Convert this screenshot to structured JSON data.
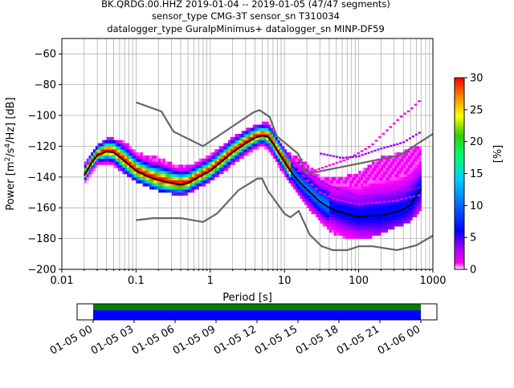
{
  "chart_data": {
    "type": "heatmap",
    "title_lines": [
      "BK.QRDG.00.HHZ   2019-01-04 -- 2019-01-05  (47/47 segments)",
      "sensor_type CMG-3T sensor_sn T310034",
      "datalogger_type GuralpMinimus+ datalogger_sn MINP-DF59"
    ],
    "xlabel": "Period [s]",
    "ylabel": "Power [m^2/s^4/Hz] [dB]",
    "xscale": "log",
    "xlim": [
      0.01,
      1000
    ],
    "ylim": [
      -200,
      -50
    ],
    "xticks": [
      {
        "v": 0.01,
        "label": "0.01"
      },
      {
        "v": 0.1,
        "label": "0.1"
      },
      {
        "v": 1,
        "label": "1"
      },
      {
        "v": 10,
        "label": "10"
      },
      {
        "v": 100,
        "label": "100"
      },
      {
        "v": 1000,
        "label": "1000"
      }
    ],
    "yticks": [
      -60,
      -80,
      -100,
      -120,
      -140,
      -160,
      -180,
      -200
    ],
    "grid": true,
    "colorbar": {
      "label": "[%]",
      "range": [
        0,
        30
      ],
      "ticks": [
        0,
        5,
        10,
        15,
        20,
        25,
        30
      ],
      "colormap_stops": [
        {
          "v": 0,
          "c": "#ffffff"
        },
        {
          "v": 1,
          "c": "#ff00ff"
        },
        {
          "v": 3.5,
          "c": "#9900ff"
        },
        {
          "v": 6,
          "c": "#0000ff"
        },
        {
          "v": 10,
          "c": "#0066ff"
        },
        {
          "v": 14,
          "c": "#00ccff"
        },
        {
          "v": 18,
          "c": "#00ff66"
        },
        {
          "v": 21,
          "c": "#33cc00"
        },
        {
          "v": 24,
          "c": "#ffff00"
        },
        {
          "v": 27,
          "c": "#ff8800"
        },
        {
          "v": 30,
          "c": "#ff0000"
        }
      ]
    },
    "noise_models": [
      {
        "name": "NHNM",
        "points": [
          [
            0.1,
            -91.5
          ],
          [
            0.22,
            -97.4
          ],
          [
            0.32,
            -110.5
          ],
          [
            0.8,
            -120
          ],
          [
            3.8,
            -98
          ],
          [
            4.6,
            -96.5
          ],
          [
            6.3,
            -101
          ],
          [
            7.9,
            -113.5
          ],
          [
            15.4,
            -125
          ],
          [
            20,
            -138
          ],
          [
            354.8,
            -126
          ],
          [
            1000,
            -112
          ]
        ]
      },
      {
        "name": "NLNM",
        "points": [
          [
            0.1,
            -168
          ],
          [
            0.17,
            -166.7
          ],
          [
            0.4,
            -166.7
          ],
          [
            0.8,
            -169.2
          ],
          [
            1.24,
            -163.7
          ],
          [
            2.4,
            -148.6
          ],
          [
            4.3,
            -141.1
          ],
          [
            5,
            -141.1
          ],
          [
            6,
            -149
          ],
          [
            10,
            -163.8
          ],
          [
            12,
            -166.2
          ],
          [
            15.6,
            -162.1
          ],
          [
            21.9,
            -177.5
          ],
          [
            31.6,
            -185
          ],
          [
            45,
            -187.5
          ],
          [
            70,
            -187.5
          ],
          [
            101,
            -185
          ],
          [
            154,
            -185
          ],
          [
            328,
            -187.5
          ],
          [
            600,
            -184.4
          ],
          [
            1000,
            -178
          ]
        ]
      }
    ],
    "mean_curve": [
      [
        0.02,
        -139
      ],
      [
        0.025,
        -131
      ],
      [
        0.03,
        -126
      ],
      [
        0.04,
        -123.5
      ],
      [
        0.05,
        -124
      ],
      [
        0.06,
        -127
      ],
      [
        0.08,
        -132
      ],
      [
        0.1,
        -136
      ],
      [
        0.15,
        -140
      ],
      [
        0.2,
        -142
      ],
      [
        0.3,
        -144
      ],
      [
        0.4,
        -145
      ],
      [
        0.5,
        -144
      ],
      [
        0.7,
        -140
      ],
      [
        1,
        -136
      ],
      [
        1.5,
        -129
      ],
      [
        2,
        -124
      ],
      [
        3,
        -118
      ],
      [
        4,
        -114.5
      ],
      [
        5,
        -113
      ],
      [
        6,
        -114
      ],
      [
        7,
        -118
      ],
      [
        8,
        -123
      ],
      [
        10,
        -130
      ],
      [
        12,
        -136
      ],
      [
        15,
        -142
      ],
      [
        20,
        -148
      ],
      [
        30,
        -156
      ],
      [
        40,
        -160
      ],
      [
        50,
        -162
      ],
      [
        70,
        -164
      ],
      [
        100,
        -166
      ],
      [
        150,
        -165
      ],
      [
        200,
        -165
      ],
      [
        300,
        -163
      ],
      [
        400,
        -161
      ],
      [
        500,
        -158
      ],
      [
        700,
        -147
      ]
    ],
    "psd_band": [
      [
        0.02,
        -143,
        -133
      ],
      [
        0.03,
        -132,
        -120
      ],
      [
        0.04,
        -131,
        -116
      ],
      [
        0.05,
        -132,
        -116
      ],
      [
        0.07,
        -137,
        -118
      ],
      [
        0.1,
        -142,
        -124
      ],
      [
        0.15,
        -146,
        -128
      ],
      [
        0.2,
        -148,
        -128
      ],
      [
        0.3,
        -150,
        -132
      ],
      [
        0.4,
        -151,
        -134
      ],
      [
        0.5,
        -150,
        -134
      ],
      [
        0.7,
        -146,
        -130
      ],
      [
        1,
        -142,
        -126
      ],
      [
        1.5,
        -136,
        -120
      ],
      [
        2,
        -131,
        -115
      ],
      [
        3,
        -125,
        -110
      ],
      [
        4,
        -121,
        -107
      ],
      [
        5,
        -119,
        -106
      ],
      [
        6,
        -121,
        -106
      ],
      [
        7,
        -126,
        -110
      ],
      [
        8,
        -131,
        -116
      ],
      [
        10,
        -138,
        -122
      ],
      [
        12,
        -144,
        -126
      ],
      [
        15,
        -150,
        -128
      ],
      [
        20,
        -158,
        -132
      ],
      [
        30,
        -168,
        -140
      ],
      [
        40,
        -174,
        -142
      ],
      [
        50,
        -177,
        -142
      ],
      [
        70,
        -179,
        -140
      ],
      [
        100,
        -179,
        -138
      ],
      [
        150,
        -178,
        -132
      ],
      [
        200,
        -176,
        -128
      ],
      [
        300,
        -172,
        -126
      ],
      [
        400,
        -170,
        -124
      ],
      [
        500,
        -168,
        -122
      ],
      [
        700,
        -160,
        -120
      ]
    ],
    "outlier_curves": [
      [
        [
          20,
          -138
        ],
        [
          40,
          -133
        ],
        [
          70,
          -129
        ],
        [
          100,
          -125
        ],
        [
          150,
          -120
        ],
        [
          200,
          -114
        ],
        [
          300,
          -106
        ],
        [
          400,
          -100
        ],
        [
          500,
          -97
        ],
        [
          700,
          -90
        ]
      ],
      [
        [
          15,
          -130
        ],
        [
          25,
          -140
        ],
        [
          40,
          -146
        ],
        [
          70,
          -150
        ],
        [
          100,
          -153
        ],
        [
          200,
          -152
        ],
        [
          400,
          -150
        ],
        [
          700,
          -147
        ]
      ],
      [
        [
          10,
          -125
        ],
        [
          20,
          -142
        ],
        [
          30,
          -150
        ],
        [
          50,
          -155
        ],
        [
          100,
          -158
        ],
        [
          300,
          -156
        ],
        [
          700,
          -152
        ]
      ],
      [
        [
          30,
          -125
        ],
        [
          60,
          -128
        ],
        [
          100,
          -127
        ],
        [
          200,
          -122
        ],
        [
          400,
          -118
        ],
        [
          700,
          -111
        ]
      ]
    ],
    "timeline": {
      "tick_labels": [
        "01-05 00",
        "01-05 03",
        "01-05 06",
        "01-05 09",
        "01-05 12",
        "01-05 15",
        "01-05 18",
        "01-05 21",
        "01-06 00"
      ],
      "data_start_label": "01-05 00",
      "data_end_label": "01-06 00",
      "availability_color": "#008000",
      "used_color": "#0000ff"
    }
  }
}
